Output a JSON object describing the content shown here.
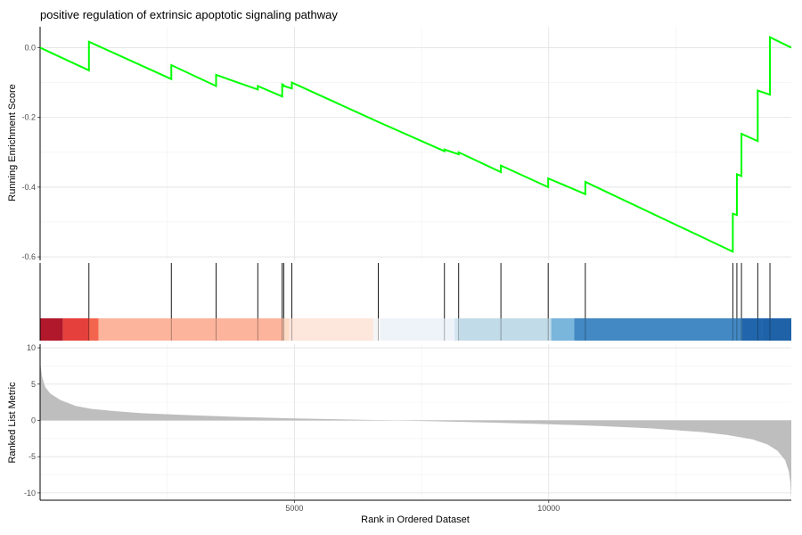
{
  "chart_data": {
    "type": "line",
    "title": "positive regulation of extrinsic apoptotic signaling pathway",
    "xlabel": "Rank in Ordered Dataset",
    "xlim": [
      0,
      14770
    ],
    "x_ticks": [
      5000,
      10000
    ],
    "grid": true,
    "panels": {
      "running_score": {
        "ylabel": "Running Enrichment Score",
        "ylim": [
          -0.61,
          0.06
        ],
        "y_ticks": [
          0.0,
          -0.2,
          -0.4,
          -0.6
        ],
        "line_color": "#00ff00",
        "hits": [
          960,
          2580,
          3460,
          4280,
          4760,
          4790,
          4950,
          6650,
          7950,
          8230,
          9060,
          9990,
          10720,
          13620,
          13700,
          13790,
          14110,
          14350
        ],
        "points": [
          [
            0,
            0.0
          ],
          [
            960,
            -0.065
          ],
          [
            960,
            0.017
          ],
          [
            2580,
            -0.09
          ],
          [
            2580,
            -0.05
          ],
          [
            3460,
            -0.11
          ],
          [
            3460,
            -0.078
          ],
          [
            4280,
            -0.12
          ],
          [
            4280,
            -0.11
          ],
          [
            4760,
            -0.14
          ],
          [
            4760,
            -0.105
          ],
          [
            4790,
            -0.107
          ],
          [
            4790,
            -0.11
          ],
          [
            4950,
            -0.117
          ],
          [
            4950,
            -0.1
          ],
          [
            6650,
            -0.213
          ],
          [
            6650,
            -0.213
          ],
          [
            7950,
            -0.297
          ],
          [
            7950,
            -0.292
          ],
          [
            8230,
            -0.306
          ],
          [
            8230,
            -0.3
          ],
          [
            9060,
            -0.357
          ],
          [
            9060,
            -0.338
          ],
          [
            9990,
            -0.4
          ],
          [
            9990,
            -0.375
          ],
          [
            10720,
            -0.42
          ],
          [
            10720,
            -0.385
          ],
          [
            13620,
            -0.585
          ],
          [
            13620,
            -0.476
          ],
          [
            13700,
            -0.48
          ],
          [
            13700,
            -0.363
          ],
          [
            13790,
            -0.368
          ],
          [
            13790,
            -0.247
          ],
          [
            14110,
            -0.268
          ],
          [
            14110,
            -0.123
          ],
          [
            14350,
            -0.135
          ],
          [
            14350,
            0.03
          ],
          [
            14770,
            0.0
          ]
        ]
      },
      "color_bar": {
        "segments": [
          {
            "from": 0,
            "to": 450,
            "color": "#b2182b"
          },
          {
            "from": 450,
            "to": 960,
            "color": "#e6403c"
          },
          {
            "from": 960,
            "to": 1150,
            "color": "#f4654e"
          },
          {
            "from": 1150,
            "to": 4780,
            "color": "#fcb49c"
          },
          {
            "from": 4780,
            "to": 4900,
            "color": "#fddbc7"
          },
          {
            "from": 4900,
            "to": 6550,
            "color": "#fde6dc"
          },
          {
            "from": 6550,
            "to": 6700,
            "color": "#f5f5f5"
          },
          {
            "from": 6700,
            "to": 8150,
            "color": "#eef3fa"
          },
          {
            "from": 8150,
            "to": 8250,
            "color": "#d1e5f0"
          },
          {
            "from": 8250,
            "to": 10050,
            "color": "#c2dbe8"
          },
          {
            "from": 10050,
            "to": 10500,
            "color": "#7ab5dc"
          },
          {
            "from": 10500,
            "to": 13800,
            "color": "#4389c3"
          },
          {
            "from": 13800,
            "to": 14200,
            "color": "#2166ac"
          },
          {
            "from": 14200,
            "to": 14770,
            "color": "#1f62a8"
          }
        ]
      },
      "ranked_metric": {
        "ylabel": "Ranked List Metric",
        "ylim": [
          -11,
          10.5
        ],
        "y_ticks": [
          10,
          5,
          0,
          -5,
          -10
        ],
        "fill_color": "#bebebe",
        "points": [
          [
            0,
            9.0
          ],
          [
            10,
            7.5
          ],
          [
            40,
            6.0
          ],
          [
            100,
            4.6
          ],
          [
            200,
            3.7
          ],
          [
            400,
            2.8
          ],
          [
            700,
            2.0
          ],
          [
            1000,
            1.6
          ],
          [
            1500,
            1.25
          ],
          [
            2000,
            1.0
          ],
          [
            3000,
            0.7
          ],
          [
            4000,
            0.45
          ],
          [
            5000,
            0.28
          ],
          [
            6000,
            0.14
          ],
          [
            6800,
            0.03
          ],
          [
            7200,
            -0.03
          ],
          [
            8000,
            -0.15
          ],
          [
            9000,
            -0.32
          ],
          [
            10000,
            -0.52
          ],
          [
            11000,
            -0.78
          ],
          [
            12000,
            -1.1
          ],
          [
            13000,
            -1.6
          ],
          [
            13500,
            -2.0
          ],
          [
            14000,
            -2.6
          ],
          [
            14300,
            -3.3
          ],
          [
            14500,
            -4.2
          ],
          [
            14650,
            -5.5
          ],
          [
            14720,
            -7.0
          ],
          [
            14750,
            -8.5
          ],
          [
            14770,
            -10.8
          ]
        ]
      }
    }
  }
}
